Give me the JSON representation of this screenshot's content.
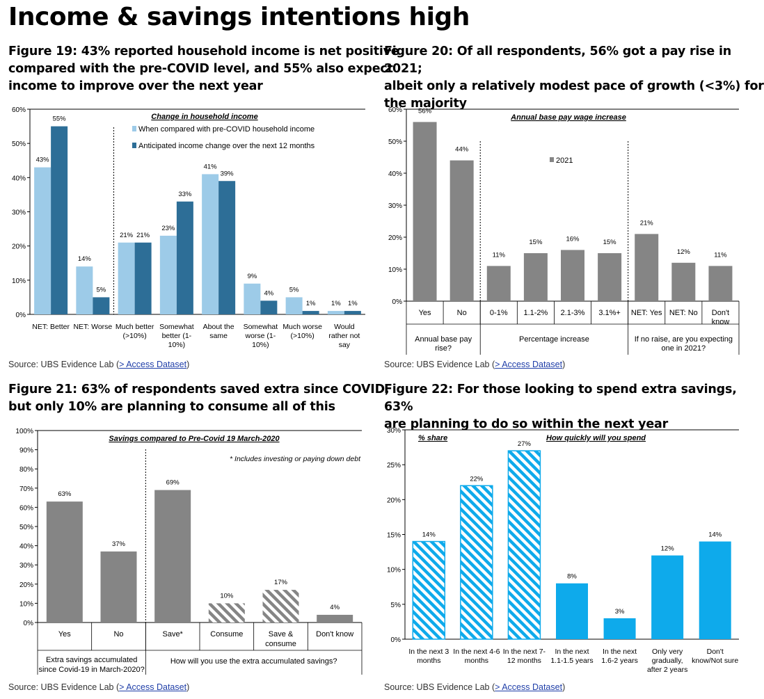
{
  "page": {
    "title": "Income & savings intentions high"
  },
  "colors": {
    "light_blue": "#9DCBE8",
    "dark_blue": "#2D6E97",
    "grey": "#858585",
    "cyan": "#0EAAEB"
  },
  "source": {
    "prefix": "Source:  UBS Evidence Lab (",
    "link": "> Access Dataset",
    "suffix": ")"
  },
  "fig19": {
    "title_line1": "Figure 19: 43% reported household  income is net positive",
    "title_line2": "compared with the pre-COVID level, and 55% also expect",
    "title_line3": "income to improve over the next year",
    "chart_data": {
      "type": "bar",
      "title": "Change in household income",
      "categories": [
        "NET: Better",
        "NET: Worse",
        "Much better (>10%)",
        "Somewhat better (1-10%)",
        "About the same",
        "Somewhat worse (1-10%)",
        "Much worse (>10%)",
        "Would rather not say"
      ],
      "category_lines": [
        [
          "NET: Better"
        ],
        [
          "NET: Worse"
        ],
        [
          "Much better",
          "(>10%)"
        ],
        [
          "Somewhat",
          "better (1-",
          "10%)"
        ],
        [
          "About the",
          "same"
        ],
        [
          "Somewhat",
          "worse (1-",
          "10%)"
        ],
        [
          "Much worse",
          "(>10%)"
        ],
        [
          "Would",
          "rather not",
          "say"
        ]
      ],
      "series": [
        {
          "name": "When compared with pre-COVID household income",
          "values": [
            43,
            14,
            21,
            23,
            41,
            9,
            5,
            1
          ]
        },
        {
          "name": "Anticipated income change over the next 12 months",
          "values": [
            55,
            5,
            21,
            33,
            39,
            4,
            1,
            1
          ]
        }
      ],
      "ylim": [
        0,
        60
      ],
      "yticks": [
        "0%",
        "10%",
        "20%",
        "30%",
        "40%",
        "50%",
        "60%"
      ],
      "legend": "top-center"
    }
  },
  "fig20": {
    "title_line1": "Figure 20: Of all respondents, 56% got a pay rise in 2021;",
    "title_line2": "albeit only a relatively modest pace of growth (<3%) for",
    "title_line3": "the majority",
    "chart_data": {
      "type": "bar",
      "title": "Annual base pay wage increase",
      "categories": [
        "Yes",
        "No",
        "0-1%",
        "1.1-2%",
        "2.1-3%",
        "3.1%+",
        "NET: Yes",
        "NET: No",
        "Don't know"
      ],
      "category_lines": [
        [
          "Yes"
        ],
        [
          "No"
        ],
        [
          "0-1%"
        ],
        [
          "1.1-2%"
        ],
        [
          "2.1-3%"
        ],
        [
          "3.1%+"
        ],
        [
          "NET: Yes"
        ],
        [
          "NET: No"
        ],
        [
          "Don't",
          "know"
        ]
      ],
      "series": [
        {
          "name": "2021",
          "values": [
            56,
            44,
            11,
            15,
            16,
            15,
            21,
            12,
            11
          ]
        }
      ],
      "groups": [
        {
          "lines": [
            "Annual base pay",
            "rise?"
          ]
        },
        {
          "lines": [
            "Percentage increase"
          ]
        },
        {
          "lines": [
            "If no raise, are you expecting",
            "one in 2021?"
          ]
        }
      ],
      "ylim": [
        0,
        60
      ],
      "yticks": [
        "0%",
        "10%",
        "20%",
        "30%",
        "40%",
        "50%",
        "60%"
      ]
    }
  },
  "fig21": {
    "title_line1": "Figure 21: 63% of respondents saved extra since COVID,",
    "title_line2": "but only 10% are planning to consume  all of this",
    "chart_data": {
      "type": "bar",
      "title": "Savings compared to Pre-Covid 19 March-2020",
      "note": "* Includes investing or paying down debt",
      "categories": [
        "Yes",
        "No",
        "Save*",
        "Consume",
        "Save & consume",
        "Don't know"
      ],
      "category_lines": [
        [
          "Yes"
        ],
        [
          "No"
        ],
        [
          "Save*"
        ],
        [
          "Consume"
        ],
        [
          "Save &",
          "consume"
        ],
        [
          "Don't know"
        ]
      ],
      "values": [
        63,
        37,
        69,
        10,
        17,
        4
      ],
      "hatched": [
        false,
        false,
        false,
        true,
        true,
        false
      ],
      "groups": [
        {
          "lines": [
            "Extra savings accumulated",
            "since Covid-19 in March-2020?"
          ]
        },
        {
          "lines": [
            "How will you use the extra accumulated savings?"
          ]
        }
      ],
      "ylim": [
        0,
        100
      ],
      "yticks": [
        "0%",
        "10%",
        "20%",
        "30%",
        "40%",
        "50%",
        "60%",
        "70%",
        "80%",
        "90%",
        "100%"
      ]
    }
  },
  "fig22": {
    "title_line1": "Figure 22: For those looking to spend extra savings, 63%",
    "title_line2": "are planning  to do so within the next year",
    "chart_data": {
      "type": "bar",
      "title": "How quickly will you spend",
      "label_left": "% share",
      "categories": [
        "In the next 3 months",
        "In the next 4-6 months",
        "In the next 7-12 months",
        "In the next 1.1-1.5 years",
        "In the next 1.6-2 years",
        "Only very gradually, after 2 years",
        "Don't know/Not sure"
      ],
      "category_lines": [
        [
          "In the next 3",
          "months"
        ],
        [
          "In the next 4-6",
          "months"
        ],
        [
          "In the next 7-",
          "12 months"
        ],
        [
          "In the next",
          "1.1-1.5 years"
        ],
        [
          "In the next",
          "1.6-2 years"
        ],
        [
          "Only very",
          "gradually,",
          "after 2 years"
        ],
        [
          "Don't",
          "know/Not sure"
        ]
      ],
      "values": [
        14,
        22,
        27,
        8,
        3,
        12,
        14
      ],
      "hatched": [
        true,
        true,
        true,
        false,
        false,
        false,
        false
      ],
      "ylim": [
        0,
        30
      ],
      "yticks": [
        "0%",
        "5%",
        "10%",
        "15%",
        "20%",
        "25%",
        "30%"
      ]
    }
  }
}
